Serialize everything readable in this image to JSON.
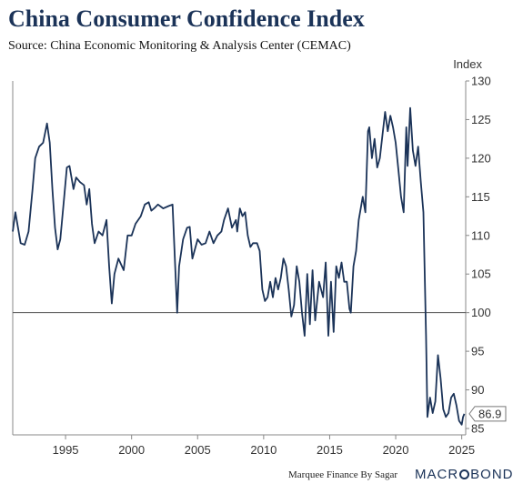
{
  "header": {
    "title": "China Consumer Confidence Index",
    "subtitle": "Source: China Economic Monitoring & Analysis Center (CEMAC)"
  },
  "footer": {
    "credit": "Marquee Finance By Sagar",
    "brand_pre": "MACR",
    "brand_post": "BOND"
  },
  "colors": {
    "line": "#1b3358",
    "reference": "#555555",
    "axis": "#888888"
  },
  "chart_data": {
    "type": "line",
    "title": "China Consumer Confidence Index",
    "subtitle": "Source: China Economic Monitoring & Analysis Center (CEMAC)",
    "ylabel": "Index",
    "xlabel": "",
    "xlim": [
      1991,
      2025.3
    ],
    "ylim": [
      85,
      130
    ],
    "x_ticks": [
      1995,
      2000,
      2005,
      2010,
      2015,
      2020,
      2025
    ],
    "y_ticks": [
      85,
      90,
      95,
      100,
      105,
      110,
      115,
      120,
      125,
      130
    ],
    "reference_line": 100,
    "last_value_label": "86.9",
    "grid": false,
    "series": [
      {
        "values": [
          [
            1991.0,
            110.5
          ],
          [
            1991.2,
            113.0
          ],
          [
            1991.4,
            111.0
          ],
          [
            1991.6,
            109.0
          ],
          [
            1991.9,
            108.8
          ],
          [
            1992.2,
            110.5
          ],
          [
            1992.5,
            116.0
          ],
          [
            1992.7,
            120.0
          ],
          [
            1993.0,
            121.5
          ],
          [
            1993.3,
            122.0
          ],
          [
            1993.6,
            124.5
          ],
          [
            1993.8,
            122.0
          ],
          [
            1994.0,
            116.0
          ],
          [
            1994.2,
            111.0
          ],
          [
            1994.4,
            108.2
          ],
          [
            1994.6,
            109.5
          ],
          [
            1994.9,
            115.0
          ],
          [
            1995.1,
            118.8
          ],
          [
            1995.3,
            119.0
          ],
          [
            1995.6,
            116.0
          ],
          [
            1995.8,
            117.5
          ],
          [
            1996.1,
            116.9
          ],
          [
            1996.4,
            116.5
          ],
          [
            1996.6,
            114.0
          ],
          [
            1996.8,
            116.0
          ],
          [
            1997.0,
            111.5
          ],
          [
            1997.2,
            109.0
          ],
          [
            1997.5,
            110.5
          ],
          [
            1997.8,
            110.0
          ],
          [
            1998.1,
            112.0
          ],
          [
            1998.3,
            106.0
          ],
          [
            1998.5,
            101.2
          ],
          [
            1998.7,
            105.0
          ],
          [
            1999.0,
            107.0
          ],
          [
            1999.4,
            105.5
          ],
          [
            1999.7,
            110.0
          ],
          [
            2000.0,
            110.0
          ],
          [
            2000.3,
            111.5
          ],
          [
            2000.7,
            112.5
          ],
          [
            2001.0,
            114.0
          ],
          [
            2001.3,
            114.3
          ],
          [
            2001.5,
            113.2
          ],
          [
            2001.7,
            113.5
          ],
          [
            2002.0,
            114.0
          ],
          [
            2002.4,
            113.5
          ],
          [
            2002.8,
            113.8
          ],
          [
            2003.1,
            114.0
          ],
          [
            2003.3,
            106.0
          ],
          [
            2003.45,
            100.0
          ],
          [
            2003.6,
            106.0
          ],
          [
            2003.9,
            109.5
          ],
          [
            2004.2,
            111.0
          ],
          [
            2004.4,
            111.1
          ],
          [
            2004.6,
            107.0
          ],
          [
            2005.0,
            109.5
          ],
          [
            2005.3,
            108.8
          ],
          [
            2005.6,
            109.0
          ],
          [
            2005.9,
            110.5
          ],
          [
            2006.2,
            109.0
          ],
          [
            2006.5,
            110.0
          ],
          [
            2006.8,
            110.5
          ],
          [
            2007.0,
            112.0
          ],
          [
            2007.3,
            113.5
          ],
          [
            2007.6,
            111.0
          ],
          [
            2007.9,
            112.0
          ],
          [
            2008.0,
            110.5
          ],
          [
            2008.2,
            113.5
          ],
          [
            2008.4,
            112.5
          ],
          [
            2008.6,
            113.0
          ],
          [
            2008.8,
            110.0
          ],
          [
            2009.0,
            108.5
          ],
          [
            2009.2,
            109.0
          ],
          [
            2009.5,
            109.0
          ],
          [
            2009.7,
            108.0
          ],
          [
            2009.9,
            103.0
          ],
          [
            2010.1,
            101.5
          ],
          [
            2010.3,
            102.0
          ],
          [
            2010.5,
            104.0
          ],
          [
            2010.7,
            102.0
          ],
          [
            2010.9,
            104.5
          ],
          [
            2011.1,
            103.0
          ],
          [
            2011.3,
            104.5
          ],
          [
            2011.5,
            107.0
          ],
          [
            2011.7,
            106.0
          ],
          [
            2011.9,
            103.0
          ],
          [
            2012.1,
            99.5
          ],
          [
            2012.3,
            101.0
          ],
          [
            2012.5,
            106.0
          ],
          [
            2012.7,
            104.0
          ],
          [
            2012.9,
            100.0
          ],
          [
            2013.1,
            97.0
          ],
          [
            2013.3,
            105.0
          ],
          [
            2013.5,
            98.5
          ],
          [
            2013.7,
            105.5
          ],
          [
            2013.9,
            99.0
          ],
          [
            2014.2,
            104.0
          ],
          [
            2014.5,
            102.0
          ],
          [
            2014.7,
            106.5
          ],
          [
            2014.9,
            97.0
          ],
          [
            2015.1,
            104.0
          ],
          [
            2015.3,
            97.5
          ],
          [
            2015.5,
            106.0
          ],
          [
            2015.7,
            104.5
          ],
          [
            2015.9,
            106.5
          ],
          [
            2016.1,
            104.0
          ],
          [
            2016.3,
            104.0
          ],
          [
            2016.5,
            100.5
          ],
          [
            2016.6,
            100.0
          ],
          [
            2016.8,
            106.0
          ],
          [
            2017.0,
            108.0
          ],
          [
            2017.2,
            112.0
          ],
          [
            2017.5,
            115.0
          ],
          [
            2017.7,
            113.0
          ],
          [
            2017.9,
            123.5
          ],
          [
            2018.0,
            124.0
          ],
          [
            2018.2,
            120.0
          ],
          [
            2018.4,
            122.5
          ],
          [
            2018.6,
            118.8
          ],
          [
            2018.8,
            120.0
          ],
          [
            2019.0,
            123.0
          ],
          [
            2019.2,
            126.0
          ],
          [
            2019.4,
            123.5
          ],
          [
            2019.6,
            125.5
          ],
          [
            2019.8,
            124.0
          ],
          [
            2020.0,
            122.0
          ],
          [
            2020.2,
            118.5
          ],
          [
            2020.4,
            115.0
          ],
          [
            2020.6,
            113.0
          ],
          [
            2020.8,
            124.0
          ],
          [
            2020.9,
            119.0
          ],
          [
            2021.1,
            126.5
          ],
          [
            2021.3,
            121.0
          ],
          [
            2021.5,
            119.0
          ],
          [
            2021.7,
            121.5
          ],
          [
            2021.9,
            117.0
          ],
          [
            2022.1,
            113.0
          ],
          [
            2022.3,
            97.0
          ],
          [
            2022.4,
            86.5
          ],
          [
            2022.6,
            89.0
          ],
          [
            2022.8,
            87.0
          ],
          [
            2023.0,
            88.5
          ],
          [
            2023.2,
            94.5
          ],
          [
            2023.4,
            91.5
          ],
          [
            2023.6,
            87.5
          ],
          [
            2023.8,
            86.5
          ],
          [
            2024.0,
            87.0
          ],
          [
            2024.2,
            89.0
          ],
          [
            2024.4,
            89.5
          ],
          [
            2024.6,
            88.0
          ],
          [
            2024.8,
            86.0
          ],
          [
            2025.0,
            85.5
          ],
          [
            2025.1,
            86.5
          ],
          [
            2025.2,
            86.9
          ]
        ]
      }
    ]
  }
}
